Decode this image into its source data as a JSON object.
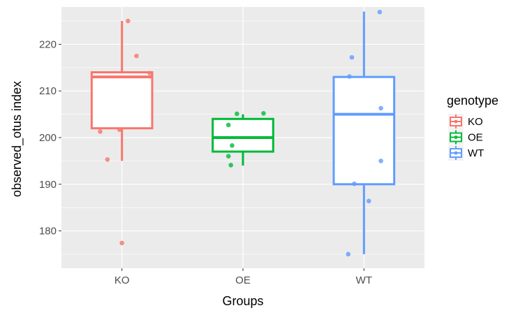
{
  "chart_data": {
    "type": "boxplot",
    "xlabel": "Groups",
    "ylabel": "observed_otus index",
    "ylim": [
      172,
      228
    ],
    "y_ticks": [
      180,
      190,
      200,
      210,
      220
    ],
    "grid": true,
    "legend": {
      "title": "genotype",
      "position": "right",
      "entries": [
        "KO",
        "OE",
        "WT"
      ]
    },
    "categories": [
      "KO",
      "OE",
      "WT"
    ],
    "series": [
      {
        "name": "KO",
        "color": "#F8766D",
        "box": {
          "whisker_low": 195,
          "q1": 202,
          "median": 213,
          "q3": 214,
          "whisker_high": 225
        },
        "points": [
          {
            "x": -0.18,
            "y": 201.3
          },
          {
            "x": 0.05,
            "y": 225
          },
          {
            "x": 0.12,
            "y": 217.5
          },
          {
            "x": 0.23,
            "y": 213.8
          },
          {
            "x": -0.02,
            "y": 201.7
          },
          {
            "x": -0.12,
            "y": 195.3
          },
          {
            "x": 0.0,
            "y": 177.4
          }
        ]
      },
      {
        "name": "OE",
        "color": "#00BA38",
        "box": {
          "whisker_low": 194,
          "q1": 197,
          "median": 200,
          "q3": 204,
          "whisker_high": 205
        },
        "points": [
          {
            "x": -0.05,
            "y": 205.1
          },
          {
            "x": 0.17,
            "y": 205.2
          },
          {
            "x": -0.12,
            "y": 202.7
          },
          {
            "x": -0.09,
            "y": 198.3
          },
          {
            "x": -0.12,
            "y": 196.0
          },
          {
            "x": -0.1,
            "y": 194.1
          }
        ]
      },
      {
        "name": "WT",
        "color": "#619CFF",
        "box": {
          "whisker_low": 175,
          "q1": 190,
          "median": 205,
          "q3": 213,
          "whisker_high": 227
        },
        "points": [
          {
            "x": 0.13,
            "y": 226.9
          },
          {
            "x": -0.1,
            "y": 217.2
          },
          {
            "x": -0.12,
            "y": 213.1
          },
          {
            "x": 0.14,
            "y": 206.3
          },
          {
            "x": 0.14,
            "y": 195.0
          },
          {
            "x": -0.08,
            "y": 190.1
          },
          {
            "x": 0.04,
            "y": 186.4
          },
          {
            "x": -0.13,
            "y": 175.0
          }
        ]
      }
    ]
  }
}
